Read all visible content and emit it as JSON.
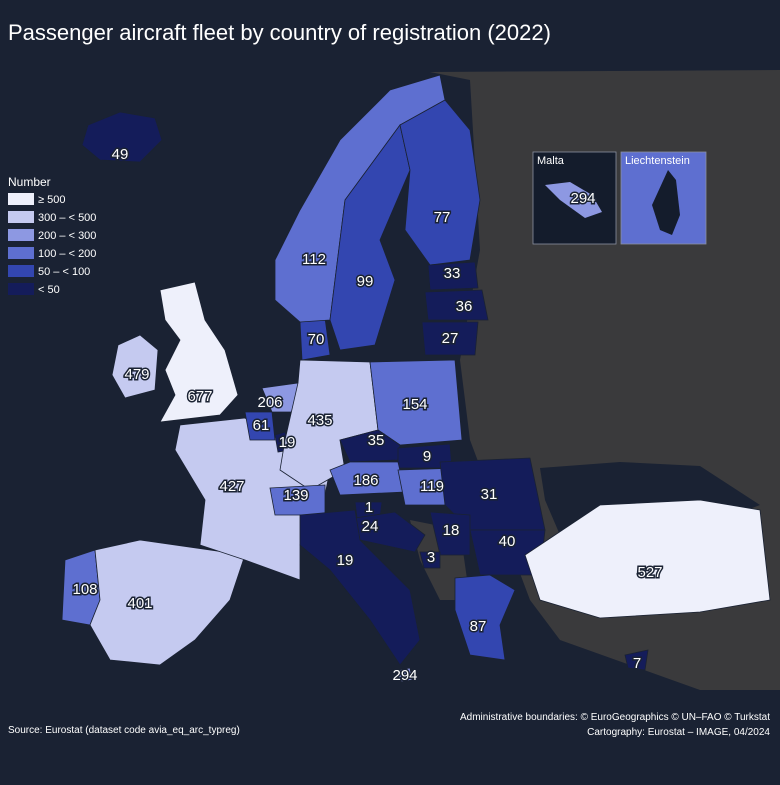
{
  "title": "Passenger aircraft fleet by country of registration (2022)",
  "legend": {
    "title": "Number",
    "items": [
      {
        "label": "≥ 500",
        "color": "#eef0fb"
      },
      {
        "label": "300 – < 500",
        "color": "#c5caf0"
      },
      {
        "label": "200 – < 300",
        "color": "#8d98e2"
      },
      {
        "label": "100 – < 200",
        "color": "#5e6fd0"
      },
      {
        "label": "50 – < 100",
        "color": "#3346b0"
      },
      {
        "label": "< 50",
        "color": "#141c5a"
      }
    ]
  },
  "insets": {
    "malta": "Malta",
    "liechtenstein": "Liechtenstein"
  },
  "regions": [
    {
      "value": 49,
      "color": "#141c5a"
    },
    {
      "value": 479,
      "color": "#c5caf0"
    },
    {
      "value": 677,
      "color": "#eef0fb"
    },
    {
      "value": 108,
      "color": "#5e6fd0"
    },
    {
      "value": 401,
      "color": "#c5caf0"
    },
    {
      "value": 427,
      "color": "#c5caf0"
    },
    {
      "value": 61,
      "color": "#3346b0"
    },
    {
      "value": 19,
      "color": "#141c5a"
    },
    {
      "value": 206,
      "color": "#8d98e2"
    },
    {
      "value": 435,
      "color": "#c5caf0"
    },
    {
      "value": 70,
      "color": "#3346b0"
    },
    {
      "value": 112,
      "color": "#5e6fd0"
    },
    {
      "value": 99,
      "color": "#3346b0"
    },
    {
      "value": 77,
      "color": "#3346b0"
    },
    {
      "value": 33,
      "color": "#141c5a"
    },
    {
      "value": 36,
      "color": "#141c5a"
    },
    {
      "value": 27,
      "color": "#141c5a"
    },
    {
      "value": 154,
      "color": "#5e6fd0"
    },
    {
      "value": 35,
      "color": "#141c5a"
    },
    {
      "value": 9,
      "color": "#141c5a"
    },
    {
      "value": 186,
      "color": "#5e6fd0"
    },
    {
      "value": 119,
      "color": "#5e6fd0"
    },
    {
      "value": 139,
      "color": "#5e6fd0"
    },
    {
      "value": 1,
      "color": "#141c5a"
    },
    {
      "value": 24,
      "color": "#141c5a"
    },
    {
      "value": 31,
      "color": "#141c5a"
    },
    {
      "value": 40,
      "color": "#141c5a"
    },
    {
      "value": 18,
      "color": "#141c5a"
    },
    {
      "value": 3,
      "color": "#141c5a"
    },
    {
      "value": 19,
      "color": "#141c5a"
    },
    {
      "value": 87,
      "color": "#3346b0"
    },
    {
      "value": 527,
      "color": "#eef0fb"
    },
    {
      "value": 7,
      "color": "#141c5a"
    },
    {
      "value": 294,
      "color": "#8d98e2"
    }
  ],
  "source": "Source: Eurostat (dataset code avia_eq_arc_typreg)",
  "credits": [
    "Administrative boundaries: © EuroGeographics © UN–FAO © Turkstat",
    "Cartography: Eurostat – IMAGE, 04/2024"
  ]
}
